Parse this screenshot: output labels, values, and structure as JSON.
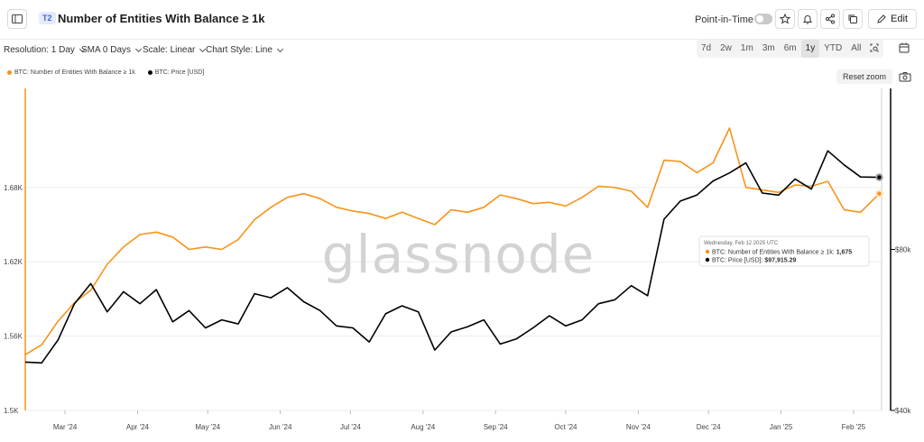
{
  "header": {
    "tier": "T2",
    "title": "Number of Entities With Balance ≥ 1k",
    "point_in_time_label": "Point-in-Time",
    "edit_label": "Edit"
  },
  "options": {
    "resolution": "Resolution: 1 Day",
    "sma": "SMA 0 Days",
    "scale": "Scale: Linear",
    "chart_style": "Chart Style: Line"
  },
  "ranges": [
    "7d",
    "2w",
    "1m",
    "3m",
    "6m",
    "1y",
    "YTD",
    "All"
  ],
  "active_range": "1y",
  "reset_zoom_label": "Reset zoom",
  "watermark": "glassnode",
  "colors": {
    "entities": "#f7931a",
    "price": "#000000"
  },
  "icons": [
    "sidebar-icon",
    "star-icon",
    "bell-icon",
    "share-icon",
    "copy-icon",
    "pencil-icon",
    "zoom-icon",
    "calendar-icon",
    "camera-icon"
  ],
  "tooltip": {
    "date": "Wednesday, Feb 12 2025 UTC",
    "entities_label": "BTC: Number of Entities With Balance ≥ 1k:",
    "entities_value": "1,675",
    "price_label": "BTC: Price [USD]:",
    "price_value": "$97,915.29"
  },
  "chart_data": {
    "type": "line",
    "x_range": [
      "2024-02-13",
      "2025-02-13"
    ],
    "x_ticks": [
      "Mar '24",
      "Apr '24",
      "May '24",
      "Jun '24",
      "Jul '24",
      "Aug '24",
      "Sep '24",
      "Oct '24",
      "Nov '24",
      "Dec '24",
      "Jan '25",
      "Feb '25"
    ],
    "y_left": {
      "ticks": [
        "1.5K",
        "1.56K",
        "1.62K",
        "1.68K"
      ],
      "range": [
        1500,
        1760
      ]
    },
    "y_right": {
      "ticks": [
        "$40k",
        "$80k"
      ],
      "range": [
        40000,
        120000
      ]
    },
    "grid": true,
    "series": [
      {
        "name": "BTC: Number of Entities With Balance ≥ 1k",
        "axis": "left",
        "color": "#f7931a",
        "x": [
          "2024-02-13",
          "2024-02-20",
          "2024-02-27",
          "2024-03-05",
          "2024-03-12",
          "2024-03-19",
          "2024-03-26",
          "2024-04-02",
          "2024-04-09",
          "2024-04-16",
          "2024-04-23",
          "2024-04-30",
          "2024-05-07",
          "2024-05-14",
          "2024-05-21",
          "2024-05-28",
          "2024-06-04",
          "2024-06-11",
          "2024-06-18",
          "2024-06-25",
          "2024-07-02",
          "2024-07-09",
          "2024-07-16",
          "2024-07-23",
          "2024-07-30",
          "2024-08-06",
          "2024-08-13",
          "2024-08-20",
          "2024-08-27",
          "2024-09-03",
          "2024-09-10",
          "2024-09-17",
          "2024-09-24",
          "2024-10-01",
          "2024-10-08",
          "2024-10-15",
          "2024-10-22",
          "2024-10-29",
          "2024-11-05",
          "2024-11-12",
          "2024-11-19",
          "2024-11-26",
          "2024-12-03",
          "2024-12-10",
          "2024-12-17",
          "2024-12-24",
          "2024-12-31",
          "2025-01-07",
          "2025-01-14",
          "2025-01-21",
          "2025-01-28",
          "2025-02-04",
          "2025-02-12"
        ],
        "values": [
          1545,
          1553,
          1572,
          1587,
          1597,
          1618,
          1632,
          1642,
          1644,
          1640,
          1630,
          1632,
          1630,
          1638,
          1654,
          1664,
          1672,
          1675,
          1671,
          1664,
          1661,
          1659,
          1655,
          1660,
          1655,
          1650,
          1662,
          1660,
          1664,
          1674,
          1671,
          1667,
          1668,
          1665,
          1672,
          1681,
          1680,
          1677,
          1664,
          1702,
          1701,
          1692,
          1700,
          1728,
          1680,
          1678,
          1676,
          1682,
          1681,
          1685,
          1662,
          1660,
          1675
        ]
      },
      {
        "name": "BTC: Price [USD]",
        "axis": "right",
        "color": "#000000",
        "x": [
          "2024-02-13",
          "2024-02-20",
          "2024-02-27",
          "2024-03-05",
          "2024-03-12",
          "2024-03-19",
          "2024-03-26",
          "2024-04-02",
          "2024-04-09",
          "2024-04-16",
          "2024-04-23",
          "2024-04-30",
          "2024-05-07",
          "2024-05-14",
          "2024-05-21",
          "2024-05-28",
          "2024-06-04",
          "2024-06-11",
          "2024-06-18",
          "2024-06-25",
          "2024-07-02",
          "2024-07-09",
          "2024-07-16",
          "2024-07-23",
          "2024-07-30",
          "2024-08-06",
          "2024-08-13",
          "2024-08-20",
          "2024-08-27",
          "2024-09-03",
          "2024-09-10",
          "2024-09-17",
          "2024-09-24",
          "2024-10-01",
          "2024-10-08",
          "2024-10-15",
          "2024-10-22",
          "2024-10-29",
          "2024-11-05",
          "2024-11-12",
          "2024-11-19",
          "2024-11-26",
          "2024-12-03",
          "2024-12-10",
          "2024-12-17",
          "2024-12-24",
          "2024-12-31",
          "2025-01-07",
          "2025-01-14",
          "2025-01-21",
          "2025-01-28",
          "2025-02-04",
          "2025-02-12"
        ],
        "values": [
          52000,
          51800,
          57500,
          66500,
          71500,
          64500,
          69500,
          66500,
          70000,
          62000,
          64800,
          60500,
          62500,
          61500,
          69000,
          68000,
          70500,
          67000,
          64800,
          61000,
          60500,
          57000,
          64000,
          66000,
          64500,
          55000,
          59500,
          60800,
          62500,
          56500,
          57800,
          60500,
          63500,
          61000,
          62500,
          66500,
          67500,
          71000,
          68500,
          87500,
          92000,
          93500,
          97000,
          99000,
          101500,
          94000,
          93500,
          97500,
          95000,
          104500,
          101000,
          98000,
          97915
        ]
      }
    ]
  }
}
